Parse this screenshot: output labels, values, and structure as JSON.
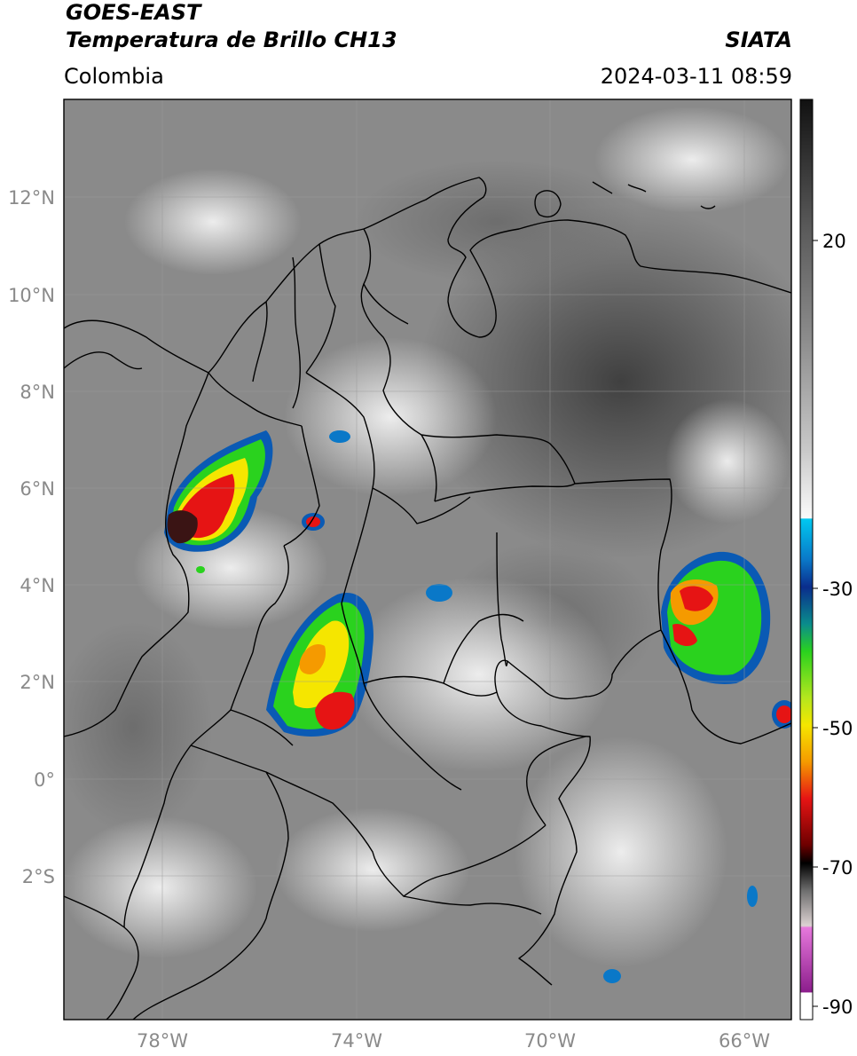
{
  "header": {
    "satellite": "GOES-EAST",
    "product": "Temperatura de Brillo CH13",
    "region": "Colombia",
    "agency": "SIATA",
    "datetime": "2024-03-11 08:59"
  },
  "map": {
    "lat_labels": [
      "12°N",
      "10°N",
      "8°N",
      "6°N",
      "4°N",
      "2°N",
      "0°",
      "2°S"
    ],
    "lon_labels": [
      "78°W",
      "74°W",
      "70°W",
      "66°W"
    ]
  },
  "colorbar": {
    "tick_labels": [
      "20",
      "-30",
      "-50",
      "-70",
      "-90"
    ],
    "colors": {
      "warm_top": "#111111",
      "gray_mid": "#8c8c8c",
      "white": "#fafafa",
      "cyan": "#00c8f0",
      "blue": "#0a2d8c",
      "green": "#2ad21e",
      "yellow": "#f5e600",
      "orange": "#f59a00",
      "red": "#e61414",
      "dark_red": "#6e0000",
      "black": "#000000",
      "pink": "#e678dc",
      "purple": "#8c1e8c"
    }
  }
}
